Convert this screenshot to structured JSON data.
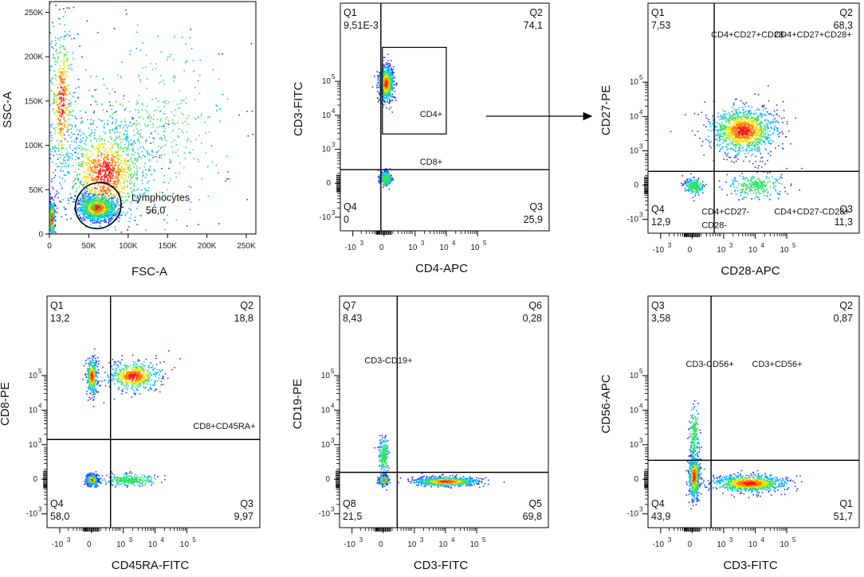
{
  "chart_data": [
    {
      "type": "scatter",
      "id": "p1",
      "xlabel": "FSC-A",
      "ylabel": "SSC-A",
      "scale": "linear",
      "xlim": [
        0,
        262144
      ],
      "ylim": [
        0,
        262144
      ],
      "xticks": [
        {
          "v": 0,
          "label": "0"
        },
        {
          "v": 50000,
          "label": "50K"
        },
        {
          "v": 100000,
          "label": "100K"
        },
        {
          "v": 150000,
          "label": "150K"
        },
        {
          "v": 200000,
          "label": "200K"
        },
        {
          "v": 250000,
          "label": "250K"
        }
      ],
      "yticks": [
        {
          "v": 0,
          "label": "0"
        },
        {
          "v": 50000,
          "label": "50K"
        },
        {
          "v": 100000,
          "label": "100K"
        },
        {
          "v": 150000,
          "label": "150K"
        },
        {
          "v": 200000,
          "label": "200K"
        },
        {
          "v": 250000,
          "label": "250K"
        }
      ],
      "gate": {
        "name": "Lymphocytes",
        "value": "56,0",
        "cx": 62000,
        "cy": 32000,
        "rx": 30000,
        "ry": 25000,
        "rotation_deg": -50
      },
      "populations": [
        {
          "cx": 60000,
          "cy": 30000,
          "sx": 16000,
          "sy": 10000,
          "n": 1600
        },
        {
          "cx": 2500,
          "cy": 18000,
          "sx": 2500,
          "sy": 14000,
          "n": 500
        },
        {
          "cx": 70000,
          "cy": 70000,
          "sx": 40000,
          "sy": 45000,
          "n": 1300
        },
        {
          "cx": 15000,
          "cy": 150000,
          "sx": 12000,
          "sy": 70000,
          "n": 500
        },
        {
          "cx": 130000,
          "cy": 120000,
          "sx": 70000,
          "sy": 80000,
          "n": 450
        }
      ]
    },
    {
      "type": "scatter",
      "id": "p2",
      "xlabel": "CD4-APC",
      "ylabel": "CD3-FITC",
      "scale": "biexponential",
      "xlim": [
        -1.4,
        5.3
      ],
      "ylim": [
        -1.4,
        5.3
      ],
      "quadrant_x": -0.1,
      "quadrant_y": 0.4,
      "quadrants": {
        "tl": {
          "name": "Q1",
          "value": "9,51E-3"
        },
        "tr": {
          "name": "Q2",
          "value": "74,1"
        },
        "br": {
          "name": "Q3",
          "value": "25,9"
        },
        "bl": {
          "name": "Q4",
          "value": "0"
        }
      },
      "annotations": [
        {
          "text": "CD4+",
          "x": 1.15,
          "y": 1.95
        },
        {
          "text": "CD8+",
          "x": 1.15,
          "y": 0.55
        }
      ],
      "gate_rect": {
        "x0": -0.05,
        "x1": 2.0,
        "y0": 1.45,
        "y1": 4.0
      },
      "populations": [
        {
          "cx": 0.05,
          "cy": 2.95,
          "sx": 0.16,
          "sy": 0.35,
          "n": 1100
        },
        {
          "cx": 0.05,
          "cy": 0.15,
          "sx": 0.12,
          "sy": 0.14,
          "n": 450
        }
      ]
    },
    {
      "type": "scatter",
      "id": "p3",
      "xlabel": "CD28-APC",
      "ylabel": "CD27-PE",
      "scale": "biexponential",
      "xlim": [
        -1.4,
        5.3
      ],
      "ylim": [
        -1.4,
        5.3
      ],
      "quadrant_x": 0.7,
      "quadrant_y": 0.4,
      "quadrants": {
        "tl": {
          "name": "Q1",
          "value": "7,53"
        },
        "tr": {
          "name": "Q2",
          "value": "68,3"
        },
        "br": {
          "name": "Q3",
          "value": "11,3"
        },
        "bl": {
          "name": "Q4",
          "value": "12,9"
        }
      },
      "annotations": [
        {
          "text": "CD4+CD27+CD28-",
          "x": 0.6,
          "y": 4.3
        },
        {
          "text": "CD4+CD27+CD28+",
          "x": 2.6,
          "y": 4.3
        },
        {
          "text": "CD4+CD27-",
          "x": 0.3,
          "y": -0.85
        },
        {
          "text": "CD28-",
          "x": 0.3,
          "y": -1.25
        },
        {
          "text": "CD4+CD27-CD28+",
          "x": 2.6,
          "y": -0.85
        }
      ],
      "populations": [
        {
          "cx": 1.6,
          "cy": 1.6,
          "sx": 0.75,
          "sy": 0.5,
          "n": 1300
        },
        {
          "cx": 0.05,
          "cy": 0.0,
          "sx": 0.2,
          "sy": 0.16,
          "n": 280
        },
        {
          "cx": 2.0,
          "cy": 0.0,
          "sx": 0.6,
          "sy": 0.25,
          "n": 280
        }
      ]
    },
    {
      "type": "scatter",
      "id": "p4",
      "xlabel": "CD45RA-FITC",
      "ylabel": "CD8-PE",
      "scale": "biexponential",
      "xlim": [
        -1.4,
        5.3
      ],
      "ylim": [
        -1.4,
        5.3
      ],
      "quadrant_x": 0.6,
      "quadrant_y": 1.15,
      "quadrants": {
        "tl": {
          "name": "Q1",
          "value": "13,2"
        },
        "tr": {
          "name": "Q2",
          "value": "18,8"
        },
        "br": {
          "name": "Q3",
          "value": "9,97"
        },
        "bl": {
          "name": "Q4",
          "value": "58,0"
        }
      },
      "annotations": [
        {
          "text": "CD8+CD45RA+",
          "x": 3.2,
          "y": 1.45
        }
      ],
      "populations": [
        {
          "cx": 0.0,
          "cy": 0.0,
          "sx": 0.12,
          "sy": 0.1,
          "n": 900
        },
        {
          "cx": 0.0,
          "cy": 3.0,
          "sx": 0.12,
          "sy": 0.35,
          "n": 500
        },
        {
          "cx": 1.3,
          "cy": 3.0,
          "sx": 0.6,
          "sy": 0.3,
          "n": 600
        },
        {
          "cx": 1.2,
          "cy": 0.0,
          "sx": 0.6,
          "sy": 0.12,
          "n": 300
        }
      ]
    },
    {
      "type": "scatter",
      "id": "p5",
      "xlabel": "CD3-FITC",
      "ylabel": "CD19-PE",
      "scale": "biexponential",
      "xlim": [
        -1.4,
        5.3
      ],
      "ylim": [
        -1.4,
        5.3
      ],
      "quadrant_x": 0.45,
      "quadrant_y": 0.2,
      "quadrants": {
        "tl": {
          "name": "Q7",
          "value": "8,43"
        },
        "tr": {
          "name": "Q6",
          "value": "0,28"
        },
        "br": {
          "name": "Q5",
          "value": "69,8"
        },
        "bl": {
          "name": "Q8",
          "value": "21,5"
        }
      },
      "annotations": [
        {
          "text": "CD3-CD19+",
          "x": -0.6,
          "y": 3.35
        }
      ],
      "populations": [
        {
          "cx": 0.0,
          "cy": 0.0,
          "sx": 0.1,
          "sy": 0.09,
          "n": 500
        },
        {
          "cx": 2.0,
          "cy": -0.05,
          "sx": 0.7,
          "sy": 0.09,
          "n": 1000
        },
        {
          "cx": 0.0,
          "cy": 0.7,
          "sx": 0.1,
          "sy": 0.35,
          "n": 250
        }
      ]
    },
    {
      "type": "scatter",
      "id": "p6",
      "xlabel": "CD3-FITC",
      "ylabel": "CD56-APC",
      "scale": "biexponential",
      "xlim": [
        -1.4,
        5.3
      ],
      "ylim": [
        -1.4,
        5.3
      ],
      "quadrant_x": 0.6,
      "quadrant_y": 0.55,
      "quadrants": {
        "tl": {
          "name": "Q3",
          "value": "3,58"
        },
        "tr": {
          "name": "Q2",
          "value": "0,87"
        },
        "br": {
          "name": "Q1",
          "value": "51,7"
        },
        "bl": {
          "name": "Q4",
          "value": "43,9"
        }
      },
      "annotations": [
        {
          "text": "CD3-CD56+",
          "x": -0.2,
          "y": 3.25
        },
        {
          "text": "CD3+CD56+",
          "x": 1.9,
          "y": 3.25
        }
      ],
      "populations": [
        {
          "cx": 0.05,
          "cy": 0.1,
          "sx": 0.12,
          "sy": 0.45,
          "n": 900
        },
        {
          "cx": 1.8,
          "cy": -0.1,
          "sx": 0.8,
          "sy": 0.18,
          "n": 1100
        },
        {
          "cx": 0.05,
          "cy": 1.3,
          "sx": 0.1,
          "sy": 0.6,
          "n": 200
        }
      ]
    }
  ],
  "log_tick_labels": {
    "neg": "-10",
    "zero": "0",
    "base": "10",
    "exps": [
      "3",
      "3",
      "4",
      "5"
    ]
  },
  "flow_arrow": {
    "from_panel": "p2",
    "to_panel": "p3"
  },
  "colors": {
    "scale": [
      "#1f35ff",
      "#00b7ff",
      "#35e06b",
      "#f0e000",
      "#ff7a00",
      "#ff1a1a"
    ],
    "frame": "#000000",
    "gate": "#000000"
  }
}
